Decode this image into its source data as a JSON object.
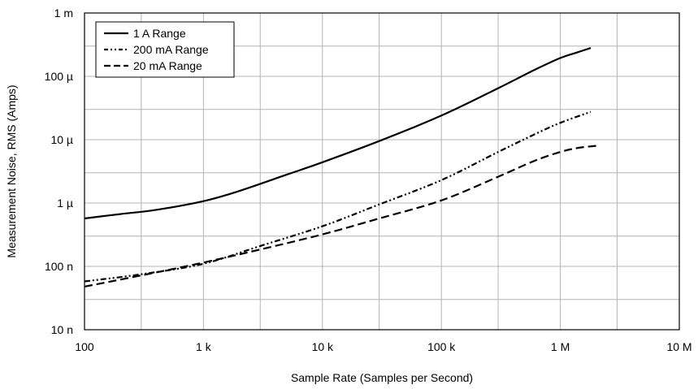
{
  "chart_data": {
    "type": "line",
    "xlabel": "Sample Rate (Samples per Second)",
    "ylabel": "Measurement Noise, RMS (Amps)",
    "x_scale": "log",
    "y_scale": "log",
    "xlim": [
      100,
      10000000
    ],
    "ylim": [
      1e-08,
      0.001
    ],
    "grid": true,
    "legend_position": "top-left",
    "x_ticks": [
      {
        "value": 100,
        "label": "100"
      },
      {
        "value": 1000,
        "label": "1 k"
      },
      {
        "value": 10000,
        "label": "10 k"
      },
      {
        "value": 100000,
        "label": "100 k"
      },
      {
        "value": 1000000,
        "label": "1 M"
      },
      {
        "value": 10000000,
        "label": "10 M"
      }
    ],
    "y_ticks": [
      {
        "value": 1e-08,
        "label": "10 n"
      },
      {
        "value": 1e-07,
        "label": "100 n"
      },
      {
        "value": 1e-06,
        "label": "1 µ"
      },
      {
        "value": 1e-05,
        "label": "10 µ"
      },
      {
        "value": 0.0001,
        "label": "100 µ"
      },
      {
        "value": 0.001,
        "label": "1 m"
      }
    ],
    "series": [
      {
        "name": "1 A Range",
        "style": "solid",
        "color": "#000000",
        "points": [
          [
            100,
            5.7e-07
          ],
          [
            200,
            6.7e-07
          ],
          [
            400,
            7.8e-07
          ],
          [
            1000,
            1.07e-06
          ],
          [
            2000,
            1.55e-06
          ],
          [
            5000,
            2.8e-06
          ],
          [
            10000,
            4.4e-06
          ],
          [
            30000,
            9.5e-06
          ],
          [
            100000,
            2.4e-05
          ],
          [
            300000,
            6.5e-05
          ],
          [
            600000,
            0.000125
          ],
          [
            1000000,
            0.000195
          ],
          [
            1400000,
            0.00024
          ],
          [
            1800000,
            0.00028
          ]
        ]
      },
      {
        "name": "200 mA Range",
        "style": "dash-dot-dot",
        "color": "#000000",
        "points": [
          [
            100,
            5.8e-08
          ],
          [
            300,
            7.5e-08
          ],
          [
            1000,
            1.1e-07
          ],
          [
            3000,
            2.1e-07
          ],
          [
            10000,
            4.3e-07
          ],
          [
            30000,
            9.5e-07
          ],
          [
            100000,
            2.3e-06
          ],
          [
            300000,
            6.4e-06
          ],
          [
            600000,
            1.2e-05
          ],
          [
            1000000,
            1.85e-05
          ],
          [
            1800000,
            2.75e-05
          ]
        ]
      },
      {
        "name": "20 mA Range",
        "style": "dashed",
        "color": "#000000",
        "points": [
          [
            100,
            4.8e-08
          ],
          [
            300,
            7.2e-08
          ],
          [
            1000,
            1.15e-07
          ],
          [
            3000,
            1.85e-07
          ],
          [
            10000,
            3.2e-07
          ],
          [
            30000,
            5.7e-07
          ],
          [
            100000,
            1.1e-06
          ],
          [
            300000,
            2.6e-06
          ],
          [
            600000,
            4.6e-06
          ],
          [
            1000000,
            6.4e-06
          ],
          [
            1400000,
            7.4e-06
          ],
          [
            2000000,
            8e-06
          ]
        ]
      }
    ]
  }
}
